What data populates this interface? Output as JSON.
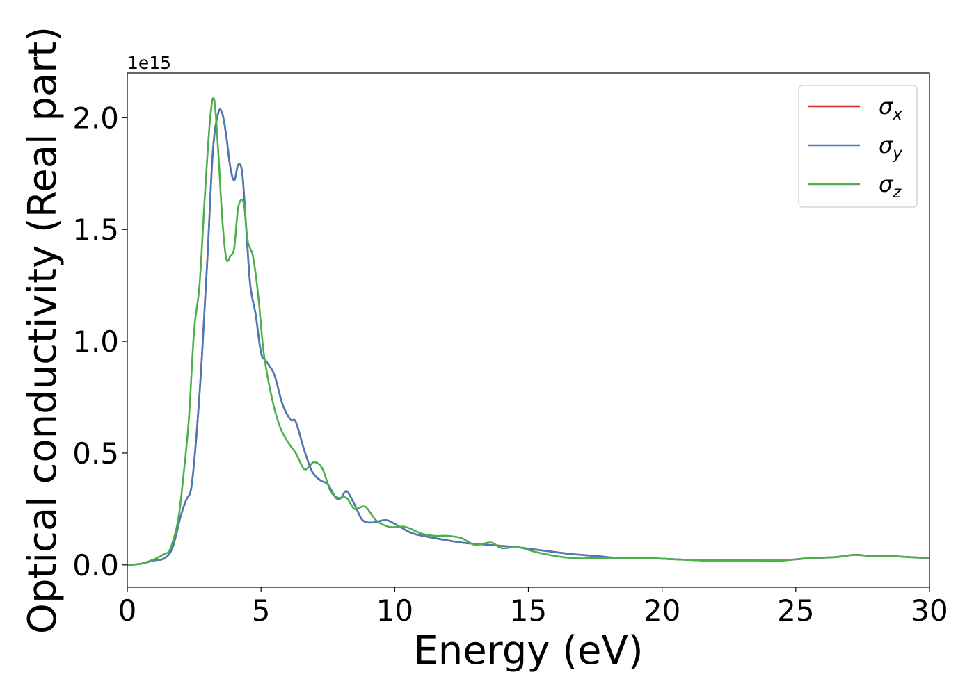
{
  "chart_data": {
    "type": "line",
    "xlabel": "Energy (eV)",
    "ylabel": "Optical conductivity (Real part)",
    "y_offset_text": "1e15",
    "y_scale_multiplier": 1000000000000000.0,
    "xlim": [
      0,
      30
    ],
    "ylim": [
      -0.1,
      2.2
    ],
    "x_ticks": [
      0,
      5,
      10,
      15,
      20,
      25,
      30
    ],
    "x_tick_labels": [
      "0",
      "5",
      "10",
      "15",
      "20",
      "25",
      "30"
    ],
    "y_ticks": [
      0.0,
      0.5,
      1.0,
      1.5,
      2.0
    ],
    "y_tick_labels": [
      "0.0",
      "0.5",
      "1.0",
      "1.5",
      "2.0"
    ],
    "grid": false,
    "legend_position": "top-right",
    "series": [
      {
        "name": "σx",
        "legend_base": "σ",
        "legend_sub": "x",
        "color": "#d62728",
        "x": [
          0,
          0.5,
          1.0,
          1.4,
          1.7,
          2.0,
          2.2,
          2.4,
          2.6,
          2.8,
          3.0,
          3.2,
          3.4,
          3.55,
          3.7,
          3.85,
          4.0,
          4.15,
          4.3,
          4.45,
          4.6,
          4.8,
          5.0,
          5.2,
          5.5,
          5.8,
          6.1,
          6.3,
          6.6,
          6.9,
          7.2,
          7.5,
          7.8,
          8.0,
          8.2,
          8.5,
          8.8,
          9.2,
          9.7,
          10.2,
          10.7,
          11.5,
          12.5,
          13.5,
          14.5,
          15.5,
          16.5,
          17.5,
          18.5,
          19.5,
          20.5,
          21.5,
          22.5,
          23.5,
          24.5,
          25.5,
          26.5,
          27.2,
          27.8,
          28.5,
          29.2,
          30
        ],
        "y": [
          0.0,
          0.005,
          0.02,
          0.03,
          0.08,
          0.22,
          0.29,
          0.35,
          0.6,
          0.95,
          1.38,
          1.85,
          2.02,
          2.02,
          1.92,
          1.78,
          1.72,
          1.79,
          1.75,
          1.5,
          1.25,
          1.12,
          0.95,
          0.91,
          0.85,
          0.72,
          0.65,
          0.64,
          0.52,
          0.42,
          0.38,
          0.36,
          0.3,
          0.3,
          0.33,
          0.27,
          0.2,
          0.19,
          0.2,
          0.17,
          0.14,
          0.12,
          0.1,
          0.09,
          0.08,
          0.065,
          0.05,
          0.04,
          0.03,
          0.03,
          0.025,
          0.02,
          0.02,
          0.02,
          0.02,
          0.03,
          0.035,
          0.045,
          0.04,
          0.04,
          0.035,
          0.03
        ]
      },
      {
        "name": "σy",
        "legend_base": "σ",
        "legend_sub": "y",
        "color": "#4a7ab8",
        "x": [
          0,
          0.5,
          1.0,
          1.4,
          1.7,
          2.0,
          2.2,
          2.4,
          2.6,
          2.8,
          3.0,
          3.2,
          3.4,
          3.55,
          3.7,
          3.85,
          4.0,
          4.15,
          4.3,
          4.45,
          4.6,
          4.8,
          5.0,
          5.2,
          5.5,
          5.8,
          6.1,
          6.3,
          6.6,
          6.9,
          7.2,
          7.5,
          7.8,
          8.0,
          8.2,
          8.5,
          8.8,
          9.2,
          9.7,
          10.2,
          10.7,
          11.5,
          12.5,
          13.5,
          14.5,
          15.5,
          16.5,
          17.5,
          18.5,
          19.5,
          20.5,
          21.5,
          22.5,
          23.5,
          24.5,
          25.5,
          26.5,
          27.2,
          27.8,
          28.5,
          29.2,
          30
        ],
        "y": [
          0.0,
          0.005,
          0.02,
          0.03,
          0.08,
          0.22,
          0.29,
          0.35,
          0.6,
          0.95,
          1.38,
          1.85,
          2.02,
          2.02,
          1.92,
          1.78,
          1.72,
          1.79,
          1.75,
          1.5,
          1.25,
          1.12,
          0.95,
          0.91,
          0.85,
          0.72,
          0.65,
          0.64,
          0.52,
          0.42,
          0.38,
          0.36,
          0.3,
          0.3,
          0.33,
          0.27,
          0.2,
          0.19,
          0.2,
          0.17,
          0.14,
          0.12,
          0.1,
          0.09,
          0.08,
          0.065,
          0.05,
          0.04,
          0.03,
          0.03,
          0.025,
          0.02,
          0.02,
          0.02,
          0.02,
          0.03,
          0.035,
          0.045,
          0.04,
          0.04,
          0.035,
          0.03
        ]
      },
      {
        "name": "σz",
        "legend_base": "σ",
        "legend_sub": "z",
        "color": "#4daf4a",
        "x": [
          0,
          0.5,
          1.0,
          1.4,
          1.6,
          1.9,
          2.1,
          2.3,
          2.5,
          2.7,
          2.9,
          3.1,
          3.25,
          3.4,
          3.55,
          3.7,
          3.85,
          4.0,
          4.15,
          4.35,
          4.5,
          4.7,
          4.9,
          5.1,
          5.4,
          5.7,
          6.0,
          6.3,
          6.6,
          6.8,
          7.0,
          7.3,
          7.6,
          7.9,
          8.2,
          8.5,
          8.9,
          9.3,
          9.8,
          10.4,
          11.0,
          11.5,
          12.0,
          12.5,
          13.0,
          13.6,
          14.0,
          14.6,
          15.2,
          16.0,
          16.7,
          17.5,
          18.5,
          19.5,
          20.5,
          21.5,
          22.5,
          23.5,
          24.5,
          25.5,
          26.5,
          27.2,
          27.8,
          28.5,
          29.2,
          30
        ],
        "y": [
          0.0,
          0.005,
          0.025,
          0.05,
          0.07,
          0.2,
          0.4,
          0.65,
          1.05,
          1.25,
          1.65,
          2.0,
          2.08,
          1.85,
          1.55,
          1.37,
          1.38,
          1.42,
          1.6,
          1.62,
          1.45,
          1.38,
          1.2,
          0.95,
          0.75,
          0.62,
          0.55,
          0.5,
          0.43,
          0.44,
          0.46,
          0.43,
          0.33,
          0.3,
          0.3,
          0.25,
          0.26,
          0.2,
          0.17,
          0.17,
          0.14,
          0.13,
          0.13,
          0.12,
          0.09,
          0.1,
          0.075,
          0.08,
          0.06,
          0.04,
          0.03,
          0.03,
          0.03,
          0.03,
          0.025,
          0.02,
          0.02,
          0.02,
          0.02,
          0.03,
          0.035,
          0.045,
          0.04,
          0.04,
          0.035,
          0.03
        ]
      }
    ]
  }
}
